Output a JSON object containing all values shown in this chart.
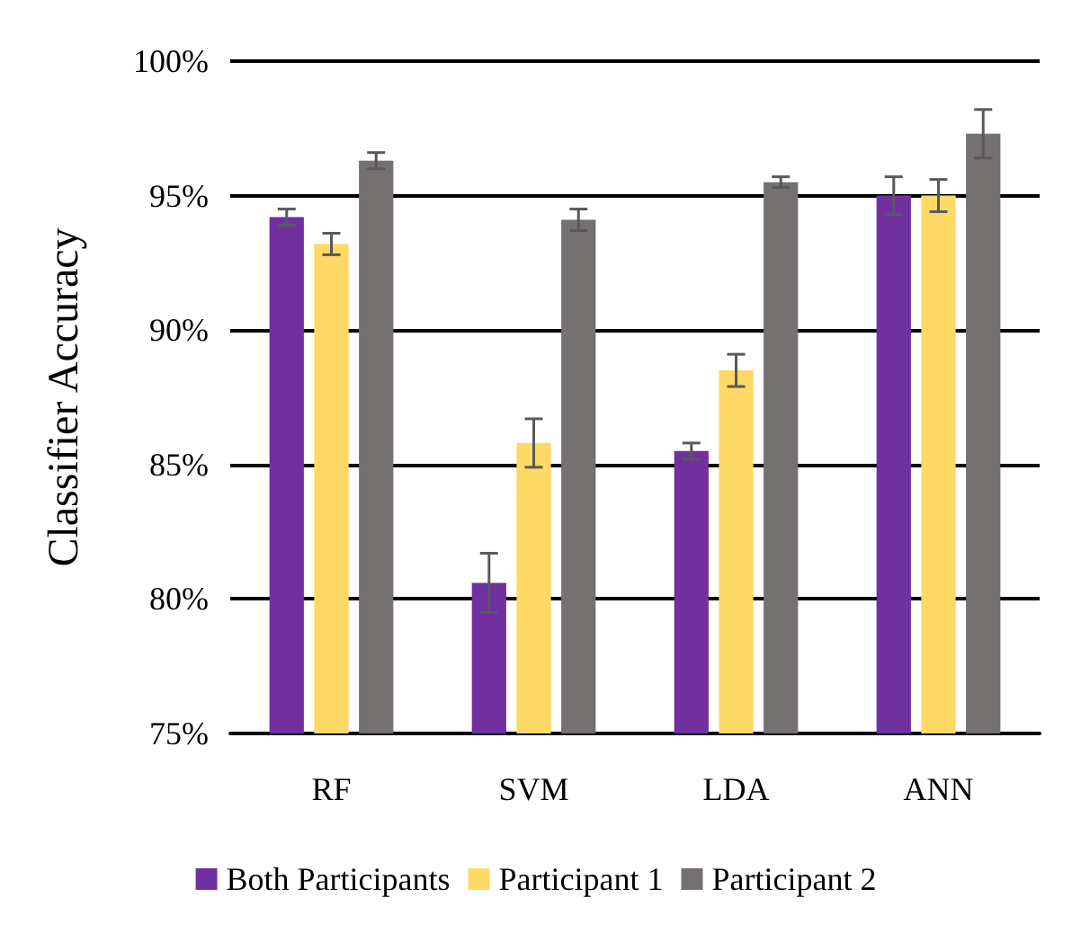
{
  "chart_data": {
    "type": "bar",
    "ylabel": "Classifier Accuracy",
    "categories": [
      "RF",
      "SVM",
      "LDA",
      "ANN"
    ],
    "series": [
      {
        "name": "Both Participants",
        "color": "#7030a0",
        "values": [
          94.2,
          80.6,
          85.5,
          95.0
        ],
        "errors": [
          0.3,
          1.1,
          0.3,
          0.7
        ]
      },
      {
        "name": "Participant 1",
        "color": "#ffd966",
        "values": [
          93.2,
          85.8,
          88.5,
          95.0
        ],
        "errors": [
          0.4,
          0.9,
          0.6,
          0.6
        ]
      },
      {
        "name": "Participant 2",
        "color": "#767171",
        "values": [
          96.3,
          94.1,
          95.5,
          97.3
        ],
        "errors": [
          0.3,
          0.4,
          0.2,
          0.9
        ]
      }
    ],
    "ylim": [
      75,
      100
    ],
    "yticks": [
      {
        "value": 75,
        "label": "75%"
      },
      {
        "value": 80,
        "label": "80%"
      },
      {
        "value": 85,
        "label": "85%"
      },
      {
        "value": 90,
        "label": "90%"
      },
      {
        "value": 95,
        "label": "95%"
      },
      {
        "value": 100,
        "label": "100%"
      }
    ],
    "grid": "y",
    "legend": "bottom"
  }
}
